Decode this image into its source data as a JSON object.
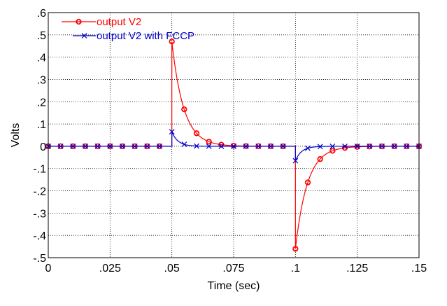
{
  "chart_data": {
    "type": "line",
    "title": "",
    "xlabel": "Time (sec)",
    "ylabel": "Volts",
    "xlim": [
      0,
      0.15
    ],
    "ylim": [
      -0.5,
      0.6
    ],
    "grid": true,
    "legend_position": "top-left",
    "x_ticks": [
      0,
      0.025,
      0.05,
      0.075,
      0.1,
      0.125,
      0.15
    ],
    "x_tick_labels": [
      "0",
      ".025",
      ".05",
      ".075",
      ".1",
      ".125",
      ".15"
    ],
    "y_ticks": [
      0.6,
      0.5,
      0.4,
      0.3,
      0.2,
      0.1,
      0,
      -0.1,
      -0.2,
      -0.3,
      -0.4,
      -0.5
    ],
    "y_tick_labels": [
      ".6",
      ".5",
      ".4",
      ".3",
      ".2",
      ".1",
      "0",
      "-.1",
      "-.2",
      "-.3",
      "-.4",
      "-.5"
    ],
    "series": [
      {
        "name": "output V2",
        "color": "#ff0000",
        "marker": "diamond-circle",
        "events": [
          {
            "t": 0.05,
            "amp": 0.47,
            "tau": 0.0048
          },
          {
            "t": 0.1,
            "amp": -0.46,
            "tau": 0.0048
          }
        ],
        "marker_x": [
          0,
          0.005,
          0.01,
          0.015,
          0.02,
          0.025,
          0.03,
          0.035,
          0.04,
          0.045,
          0.05,
          0.055,
          0.06,
          0.065,
          0.07,
          0.075,
          0.08,
          0.085,
          0.09,
          0.095,
          0.1,
          0.105,
          0.11,
          0.115,
          0.12,
          0.125,
          0.13,
          0.135,
          0.14,
          0.145,
          0.15
        ]
      },
      {
        "name": "output V2 with FCCP",
        "color": "#0000cc",
        "marker": "x",
        "events": [
          {
            "t": 0.05,
            "amp": 0.065,
            "tau": 0.0025
          },
          {
            "t": 0.1,
            "amp": -0.065,
            "tau": 0.0025
          }
        ],
        "marker_x": [
          0,
          0.005,
          0.01,
          0.015,
          0.02,
          0.025,
          0.03,
          0.035,
          0.04,
          0.045,
          0.05,
          0.055,
          0.06,
          0.065,
          0.07,
          0.075,
          0.08,
          0.085,
          0.09,
          0.095,
          0.1,
          0.105,
          0.11,
          0.115,
          0.12,
          0.125,
          0.13,
          0.135,
          0.14,
          0.145,
          0.15
        ]
      }
    ]
  }
}
